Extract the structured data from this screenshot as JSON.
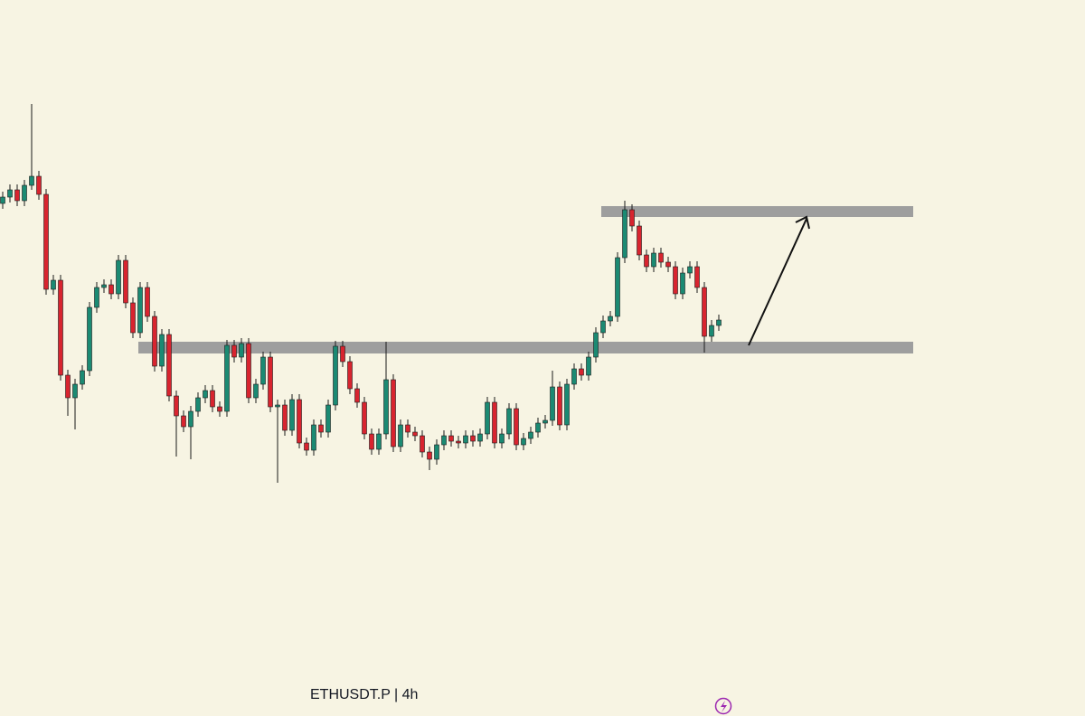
{
  "chart_data": {
    "type": "candlestick",
    "title": "ETHUSDT.P | 4h",
    "up_color": "#1b8a73",
    "down_color": "#d8242f",
    "ylim": [
      8,
      800
    ],
    "zones": [
      [
        560,
        572
      ],
      [
        409,
        422
      ]
    ],
    "open": [
      575,
      582,
      590,
      578,
      595,
      605,
      585,
      480,
      490,
      385,
      360,
      375,
      390,
      460,
      482,
      485,
      475,
      512,
      465,
      432,
      482,
      450,
      395,
      430,
      362,
      340,
      328,
      345,
      360,
      368,
      350,
      345,
      418,
      405,
      420,
      360,
      375,
      405,
      350,
      352,
      324,
      358,
      310,
      302,
      330,
      322,
      352,
      417,
      400,
      370,
      355,
      320,
      303,
      320,
      380,
      306,
      330,
      322,
      318,
      300,
      292,
      308,
      318,
      312,
      310,
      318,
      312,
      320,
      355,
      310,
      320,
      348,
      308,
      315,
      322,
      332,
      335,
      372,
      330,
      375,
      392,
      385,
      405,
      432,
      445,
      450,
      515,
      568,
      550,
      518,
      505,
      520,
      510,
      505,
      475,
      498,
      505,
      482,
      428,
      440
    ],
    "high": [
      588,
      596,
      596,
      601,
      685,
      611,
      591,
      496,
      496,
      391,
      381,
      396,
      466,
      488,
      491,
      491,
      518,
      518,
      471,
      488,
      488,
      456,
      436,
      436,
      368,
      346,
      351,
      366,
      374,
      374,
      356,
      424,
      424,
      426,
      426,
      381,
      411,
      411,
      358,
      358,
      364,
      364,
      316,
      336,
      336,
      358,
      423,
      423,
      406,
      376,
      361,
      326,
      326,
      422,
      386,
      336,
      336,
      328,
      324,
      306,
      314,
      324,
      324,
      318,
      324,
      324,
      326,
      361,
      361,
      326,
      354,
      354,
      321,
      328,
      338,
      341,
      390,
      378,
      381,
      398,
      398,
      411,
      438,
      451,
      456,
      521,
      578,
      574,
      556,
      524,
      526,
      526,
      516,
      511,
      504,
      511,
      511,
      488,
      446,
      452
    ],
    "low": [
      569,
      576,
      572,
      572,
      590,
      579,
      474,
      474,
      379,
      340,
      325,
      369,
      384,
      454,
      476,
      469,
      469,
      459,
      426,
      426,
      444,
      389,
      389,
      356,
      295,
      322,
      292,
      339,
      354,
      344,
      339,
      339,
      399,
      399,
      354,
      354,
      369,
      344,
      266,
      318,
      318,
      304,
      296,
      296,
      316,
      316,
      346,
      394,
      364,
      349,
      314,
      297,
      297,
      314,
      300,
      300,
      316,
      312,
      294,
      280,
      286,
      302,
      306,
      304,
      304,
      306,
      306,
      314,
      304,
      304,
      314,
      302,
      302,
      309,
      316,
      326,
      329,
      324,
      324,
      369,
      379,
      379,
      399,
      426,
      439,
      444,
      509,
      544,
      512,
      499,
      499,
      504,
      499,
      469,
      469,
      492,
      476,
      410,
      422,
      434
    ],
    "close": [
      582,
      590,
      578,
      595,
      605,
      585,
      480,
      490,
      385,
      360,
      375,
      390,
      460,
      482,
      485,
      475,
      512,
      465,
      432,
      482,
      450,
      395,
      430,
      362,
      340,
      328,
      345,
      360,
      368,
      350,
      345,
      418,
      405,
      420,
      360,
      375,
      405,
      350,
      352,
      324,
      358,
      310,
      302,
      330,
      322,
      352,
      417,
      400,
      370,
      355,
      320,
      303,
      320,
      380,
      306,
      330,
      322,
      318,
      300,
      292,
      308,
      318,
      312,
      310,
      318,
      312,
      320,
      355,
      310,
      320,
      348,
      308,
      315,
      322,
      332,
      335,
      372,
      330,
      375,
      392,
      385,
      405,
      432,
      445,
      450,
      515,
      568,
      550,
      518,
      505,
      520,
      510,
      505,
      475,
      498,
      505,
      482,
      428,
      440,
      446
    ]
  }
}
